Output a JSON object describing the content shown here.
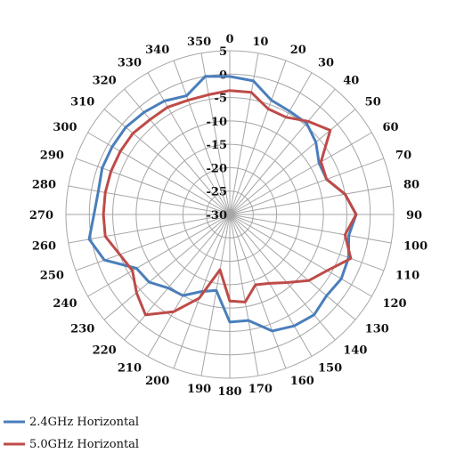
{
  "chart_data": {
    "type": "polar-line",
    "angle_unit": "degrees",
    "angles": [
      0,
      10,
      20,
      30,
      40,
      50,
      60,
      70,
      80,
      90,
      100,
      110,
      120,
      130,
      140,
      150,
      160,
      170,
      180,
      190,
      200,
      210,
      220,
      230,
      240,
      250,
      260,
      270,
      280,
      290,
      300,
      310,
      320,
      330,
      340,
      350
    ],
    "angle_tick_labels": [
      "0",
      "10",
      "20",
      "30",
      "40",
      "50",
      "60",
      "70",
      "80",
      "90",
      "100",
      "110",
      "120",
      "130",
      "140",
      "150",
      "160",
      "170",
      "180",
      "190",
      "200",
      "210",
      "220",
      "230",
      "240",
      "250",
      "260",
      "270",
      "280",
      "290",
      "300",
      "310",
      "320",
      "330",
      "340",
      "350"
    ],
    "radial_range": [
      -30,
      5
    ],
    "radial_tick_labels": [
      "5",
      "0",
      "-5",
      "-10",
      "-15",
      "-20",
      "-25",
      "-30"
    ],
    "radial_ticks": [
      5,
      0,
      -5,
      -10,
      -15,
      -20,
      -25,
      -30
    ],
    "grid": true,
    "legend": "bottom-left",
    "series": [
      {
        "name": "2.4GHz Horizontal",
        "color": "#4a7ebb",
        "values": [
          -0.5,
          -1,
          -4,
          -4.5,
          -4.5,
          -6,
          -8,
          -8,
          -5,
          -3,
          -4.2,
          -3,
          -2.5,
          -3,
          -2,
          -2.5,
          -3.5,
          -7,
          -7,
          -13.5,
          -12.5,
          -10,
          -9.5,
          -7.5,
          -7,
          -1.5,
          0.5,
          -1,
          -1.5,
          -1,
          -1,
          -1,
          -1.5,
          -2,
          -3,
          0
        ]
      },
      {
        "name": "5.0GHz Horizontal",
        "color": "#be4b48",
        "values": [
          -3.5,
          -3.5,
          -6,
          -6,
          -4,
          -2,
          -7.5,
          -8,
          -5,
          -3,
          -5,
          -2.5,
          -6,
          -8,
          -11,
          -13,
          -14,
          -11,
          -11.5,
          -18,
          -11,
          -6,
          -2,
          -4,
          -6,
          -5,
          -3,
          -3,
          -3,
          -3,
          -3,
          -3,
          -3.5,
          -3.5,
          -4,
          -4
        ]
      }
    ]
  }
}
